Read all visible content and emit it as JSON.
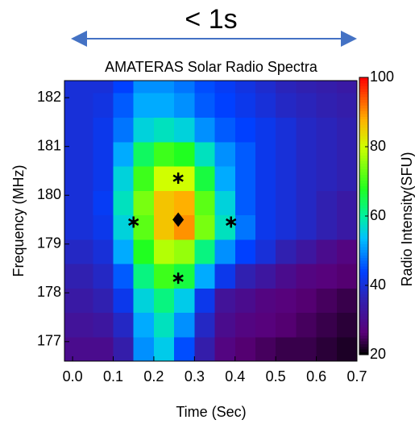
{
  "chart_data": {
    "type": "heatmap",
    "header": "< 1s",
    "title": "AMATERAS Solar Radio Spectra",
    "xlabel": "Time (Sec)",
    "ylabel": "Frequency (MHz)",
    "colorbar_label": "Radio Intensity(SFU)",
    "xlim": [
      -0.02,
      0.7
    ],
    "xticks": [
      {
        "value": 0,
        "label": "0.0"
      },
      0.1,
      0.2,
      0.3,
      0.4,
      0.5,
      0.6,
      0.7
    ],
    "ylim": [
      176.6,
      182.35
    ],
    "yticks": [
      177,
      178,
      179,
      180,
      181,
      182
    ],
    "zlim": [
      20,
      100
    ],
    "zticks": [
      20,
      40,
      60,
      80,
      100
    ],
    "x": [
      0.025,
      0.075,
      0.125,
      0.175,
      0.225,
      0.275,
      0.325,
      0.375,
      0.425,
      0.475,
      0.525,
      0.575,
      0.625,
      0.675
    ],
    "y": [
      176.85,
      177.35,
      177.85,
      178.35,
      178.85,
      179.35,
      179.85,
      180.35,
      180.85,
      181.35,
      181.85,
      182.35
    ],
    "z": [
      [
        30,
        30,
        35,
        50,
        55,
        45,
        35,
        28,
        26,
        25,
        24,
        24,
        23,
        22
      ],
      [
        32,
        33,
        38,
        52,
        58,
        50,
        38,
        30,
        28,
        27,
        26,
        25,
        24,
        23
      ],
      [
        34,
        36,
        42,
        56,
        62,
        55,
        42,
        32,
        30,
        28,
        27,
        26,
        25,
        24
      ],
      [
        36,
        38,
        46,
        62,
        70,
        66,
        52,
        42,
        36,
        33,
        30,
        28,
        27,
        26
      ],
      [
        38,
        40,
        52,
        68,
        78,
        76,
        62,
        50,
        44,
        40,
        36,
        33,
        30,
        28
      ],
      [
        40,
        42,
        56,
        72,
        86,
        90,
        74,
        58,
        48,
        42,
        40,
        38,
        36,
        34
      ],
      [
        40,
        43,
        58,
        74,
        86,
        88,
        72,
        56,
        46,
        42,
        40,
        38,
        36,
        34
      ],
      [
        40,
        42,
        56,
        70,
        80,
        80,
        66,
        52,
        46,
        42,
        40,
        38,
        37,
        36
      ],
      [
        40,
        42,
        52,
        64,
        70,
        68,
        58,
        50,
        46,
        42,
        40,
        38,
        37,
        36
      ],
      [
        40,
        42,
        48,
        56,
        58,
        56,
        50,
        46,
        44,
        42,
        40,
        38,
        37,
        36
      ],
      [
        40,
        41,
        46,
        52,
        52,
        50,
        46,
        44,
        42,
        40,
        38,
        37,
        36,
        35
      ],
      [
        40,
        40,
        44,
        50,
        50,
        48,
        45,
        43,
        41,
        39,
        37,
        36,
        35,
        34
      ]
    ],
    "stars": {
      "x": [
        0.15,
        0.39,
        0.26,
        0.26
      ],
      "y": [
        179.45,
        179.45,
        180.35,
        178.3
      ]
    },
    "diamond": {
      "x": [
        0.26
      ],
      "y": [
        179.5
      ]
    }
  }
}
